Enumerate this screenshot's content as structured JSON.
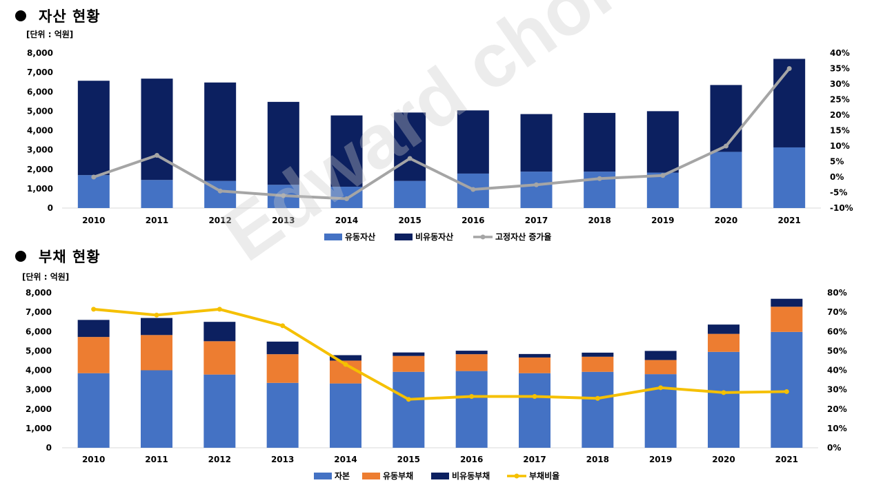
{
  "sections": [
    {
      "title": "자산 현황",
      "unit": "[단위 : 억원]"
    },
    {
      "title": "부채 현황",
      "unit": "[단위 : 억원]"
    }
  ],
  "watermark": "Edward choi",
  "colors": {
    "current_assets": "#4472c4",
    "noncurrent_assets": "#0c2060",
    "growth_line": "#a5a5a5",
    "equity": "#4472c4",
    "current_liab": "#ed7d31",
    "noncurrent_liab": "#0c2060",
    "debt_ratio_line": "#f5c000"
  },
  "chart_data": [
    {
      "type": "bar",
      "stacked": true,
      "title": "자산 현황",
      "categories": [
        "2010",
        "2011",
        "2012",
        "2013",
        "2014",
        "2015",
        "2016",
        "2017",
        "2018",
        "2019",
        "2020",
        "2021"
      ],
      "series": [
        {
          "name": "유동자산",
          "values": [
            1700,
            1450,
            1400,
            1200,
            1100,
            1400,
            1780,
            1880,
            1880,
            1830,
            2900,
            3130
          ]
        },
        {
          "name": "비유동자산",
          "values": [
            4870,
            5230,
            5080,
            4280,
            3680,
            3530,
            3260,
            2970,
            3030,
            3170,
            3450,
            4570
          ]
        }
      ],
      "line_series": {
        "name": "고정자산 증가율",
        "axis": "right",
        "values": [
          0,
          7,
          -4.5,
          -6,
          -7,
          6,
          -4,
          -2.5,
          -0.5,
          0.5,
          10,
          35
        ]
      },
      "ylim": [
        0,
        8000
      ],
      "y_ticks": [
        "0",
        "1,000",
        "2,000",
        "3,000",
        "4,000",
        "5,000",
        "6,000",
        "7,000",
        "8,000"
      ],
      "y2lim": [
        -10,
        40
      ],
      "y2_ticks": [
        "-10%",
        "-5%",
        "0%",
        "5%",
        "10%",
        "15%",
        "20%",
        "25%",
        "30%",
        "35%",
        "40%"
      ],
      "legend": "bottom"
    },
    {
      "type": "bar",
      "stacked": true,
      "title": "부채 현황",
      "categories": [
        "2010",
        "2011",
        "2012",
        "2013",
        "2014",
        "2015",
        "2016",
        "2017",
        "2018",
        "2019",
        "2020",
        "2021"
      ],
      "series": [
        {
          "name": "자본",
          "values": [
            3850,
            4000,
            3780,
            3350,
            3320,
            3920,
            3960,
            3850,
            3920,
            3800,
            4950,
            5980
          ]
        },
        {
          "name": "유동부채",
          "values": [
            1870,
            1820,
            1720,
            1480,
            1180,
            820,
            870,
            810,
            780,
            730,
            930,
            1300
          ]
        },
        {
          "name": "비유동부채",
          "values": [
            880,
            880,
            1000,
            650,
            280,
            180,
            180,
            180,
            210,
            470,
            480,
            410
          ]
        }
      ],
      "line_series": {
        "name": "부채비율",
        "axis": "right",
        "values": [
          71.5,
          68.5,
          71.5,
          63,
          43,
          25,
          26.5,
          26.5,
          25.5,
          31,
          28.5,
          29
        ]
      },
      "ylim": [
        0,
        8000
      ],
      "y_ticks": [
        "0",
        "1,000",
        "2,000",
        "3,000",
        "4,000",
        "5,000",
        "6,000",
        "7,000",
        "8,000"
      ],
      "y2lim": [
        0,
        80
      ],
      "y2_ticks": [
        "0%",
        "10%",
        "20%",
        "30%",
        "40%",
        "50%",
        "60%",
        "70%",
        "80%"
      ],
      "legend": "bottom"
    }
  ]
}
